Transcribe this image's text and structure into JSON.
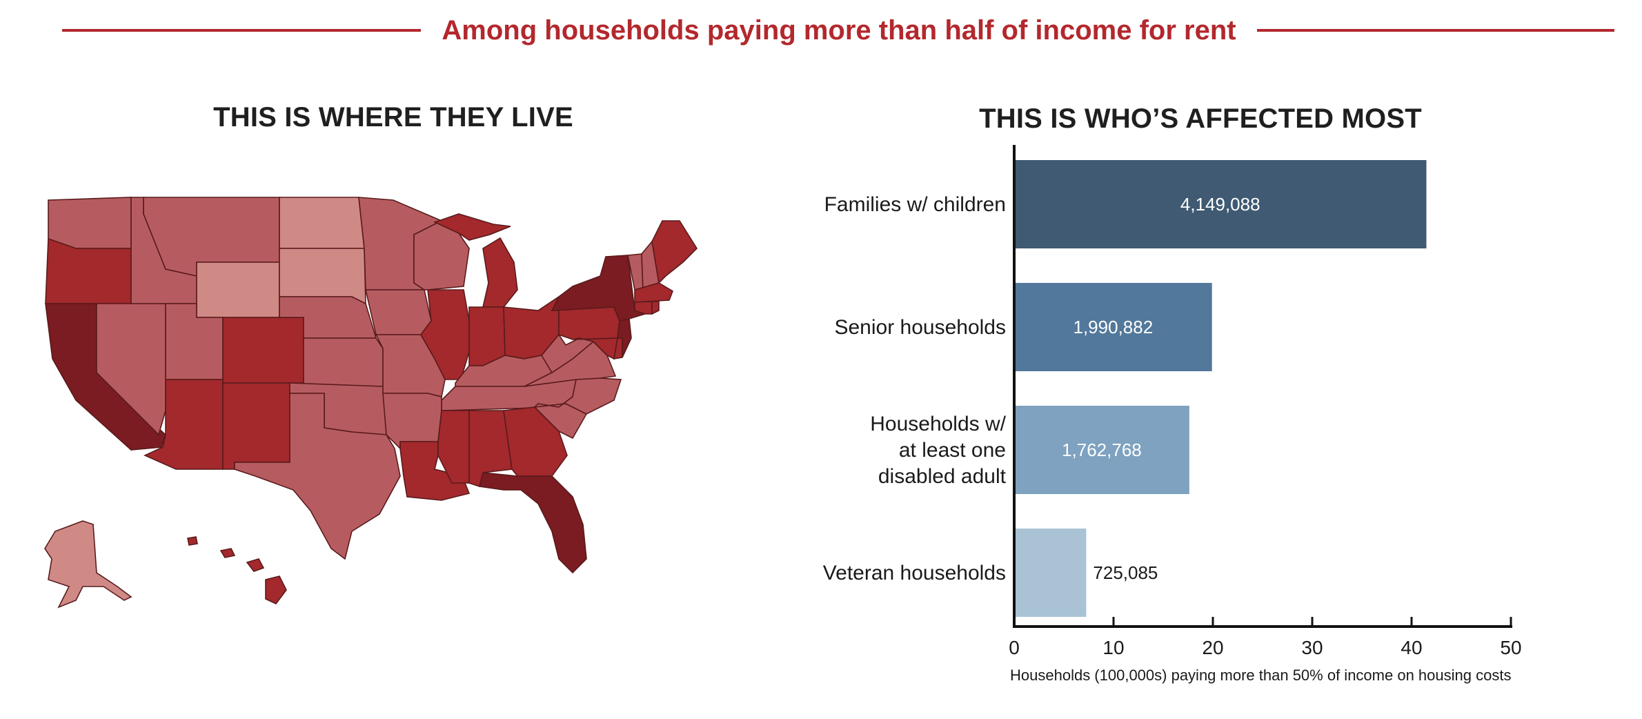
{
  "header": {
    "title": "Among households paying more than half of income for rent"
  },
  "map_panel": {
    "title": "THIS IS WHERE THEY LIVE",
    "colors": {
      "lightest": "#d08a86",
      "light": "#b65c60",
      "medium": "#a3292c",
      "dark": "#7a1c21",
      "border": "#5a1a1c"
    }
  },
  "chart_panel": {
    "title": "THIS IS WHO’S AFFECTED MOST"
  },
  "chart_data": {
    "type": "bar",
    "orientation": "horizontal",
    "categories": [
      [
        "Families w/ children"
      ],
      [
        "Senior households"
      ],
      [
        "Households w/",
        "at least one",
        "disabled adult"
      ],
      [
        "Veteran households"
      ]
    ],
    "values": [
      41.49088,
      19.90882,
      17.62768,
      7.25085
    ],
    "value_labels": [
      "4,149,088",
      "1,990,882",
      "1,762,768",
      "725,085"
    ],
    "colors": [
      "#3f5a72",
      "#52789b",
      "#7ea2c0",
      "#a9c3d4"
    ],
    "xlabel": "Households (100,000s) paying more than 50% of income on housing costs",
    "xlim": [
      0,
      50
    ],
    "xticks": [
      0,
      10,
      20,
      30,
      40,
      50
    ],
    "grid": false
  }
}
